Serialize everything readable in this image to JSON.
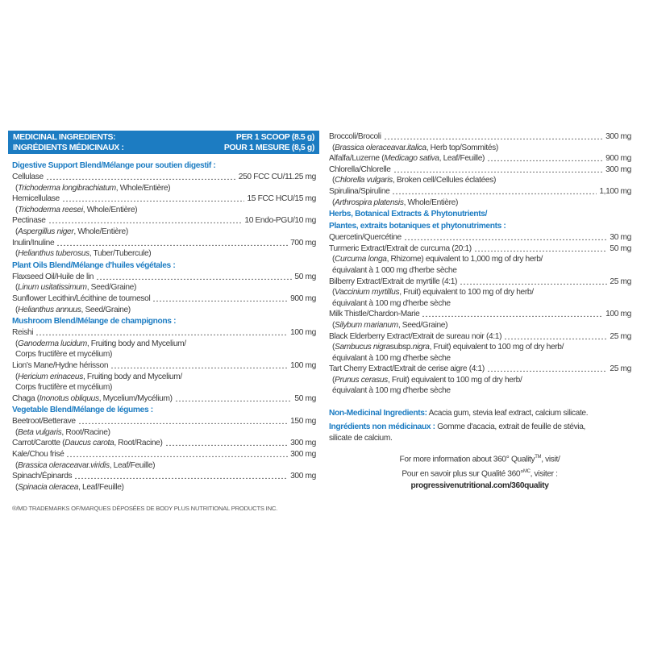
{
  "header": {
    "left1": "MEDICINAL INGREDIENTS:",
    "right1": "PER 1 SCOOP (8.5 g)",
    "left2": "INGRÉDIENTS MÉDICINAUX :",
    "right2": "POUR 1 MESURE (8,5 g)"
  },
  "colors": {
    "accent": "#1c7cc2",
    "text": "#3a3a3a"
  },
  "left": [
    {
      "section": "Digestive Support Blend/Mélange pour soutien digestif :"
    },
    {
      "name": [
        {
          "t": "Cellulase"
        }
      ],
      "amount": "250 FCC CU/11.25 mg",
      "sub": [
        [
          {
            "t": "(",
            "i": false
          },
          {
            "t": "Trichoderma longibrachiatum",
            "i": true
          },
          {
            "t": ", Whole/Entière)"
          }
        ]
      ]
    },
    {
      "name": [
        {
          "t": "Hemicellulase"
        }
      ],
      "amount": "15 FCC HCU/15 mg",
      "sub": [
        [
          {
            "t": "("
          },
          {
            "t": "Trichoderma reesei",
            "i": true
          },
          {
            "t": ", Whole/Entière)"
          }
        ]
      ]
    },
    {
      "name": [
        {
          "t": "Pectinase"
        }
      ],
      "amount": "10 Endo-PGU/10 mg",
      "sub": [
        [
          {
            "t": "("
          },
          {
            "t": "Aspergillus niger",
            "i": true
          },
          {
            "t": ", Whole/Entière)"
          }
        ]
      ]
    },
    {
      "name": [
        {
          "t": "Inulin/Inuline"
        }
      ],
      "amount": "700 mg",
      "sub": [
        [
          {
            "t": "("
          },
          {
            "t": "Helianthus tuberosus",
            "i": true
          },
          {
            "t": ", Tuber/Tubercule)"
          }
        ]
      ]
    },
    {
      "section": "Plant Oils Blend/Mélange d'huiles végétales :"
    },
    {
      "name": [
        {
          "t": "Flaxseed Oil/Huile de lin"
        }
      ],
      "amount": "50 mg",
      "sub": [
        [
          {
            "t": "("
          },
          {
            "t": "Linum usitatissimum",
            "i": true
          },
          {
            "t": ", Seed/Graine)"
          }
        ]
      ]
    },
    {
      "name": [
        {
          "t": "Sunflower Lecithin/Lécithine de tournesol"
        }
      ],
      "amount": "900 mg",
      "sub": [
        [
          {
            "t": "("
          },
          {
            "t": "Helianthus annuus",
            "i": true
          },
          {
            "t": ", Seed/Graine)"
          }
        ]
      ]
    },
    {
      "section": "Mushroom Blend/Mélange de champignons :"
    },
    {
      "name": [
        {
          "t": "Reishi"
        }
      ],
      "amount": "100 mg",
      "sub": [
        [
          {
            "t": "("
          },
          {
            "t": "Ganoderma lucidum",
            "i": true
          },
          {
            "t": ", Fruiting body and Mycelium/"
          }
        ],
        [
          {
            "t": "Corps fructifère et mycélium)"
          }
        ]
      ]
    },
    {
      "name": [
        {
          "t": "Lion's Mane/Hydne hérisson"
        }
      ],
      "amount": "100 mg",
      "sub": [
        [
          {
            "t": "("
          },
          {
            "t": "Hericium erinaceus",
            "i": true
          },
          {
            "t": ", Fruiting body and Mycelium/"
          }
        ],
        [
          {
            "t": "Corps fructifère et mycélium)"
          }
        ]
      ]
    },
    {
      "name": [
        {
          "t": "Chaga ("
        },
        {
          "t": "Inonotus obliquus",
          "i": true
        },
        {
          "t": ", Mycelium/Mycélium)"
        }
      ],
      "amount": "50 mg",
      "sub": []
    },
    {
      "section": "Vegetable Blend/Mélange de légumes :"
    },
    {
      "name": [
        {
          "t": "Beetroot/Betterave"
        }
      ],
      "amount": "150 mg",
      "sub": [
        [
          {
            "t": "("
          },
          {
            "t": "Beta vulgaris",
            "i": true
          },
          {
            "t": ", Root/Racine)"
          }
        ]
      ]
    },
    {
      "name": [
        {
          "t": "Carrot/Carotte ("
        },
        {
          "t": "Daucus carota",
          "i": true
        },
        {
          "t": ", Root/Racine)"
        }
      ],
      "amount": "300 mg",
      "sub": []
    },
    {
      "name": [
        {
          "t": "Kale/Chou frisé"
        }
      ],
      "amount": "300 mg",
      "sub": [
        [
          {
            "t": "("
          },
          {
            "t": "Brassica oleracea",
            "i": true
          },
          {
            "t": " var. "
          },
          {
            "t": "viridis",
            "i": true
          },
          {
            "t": ", Leaf/Feuille)"
          }
        ]
      ]
    },
    {
      "name": [
        {
          "t": "Spinach/Épinards"
        }
      ],
      "amount": "300 mg",
      "sub": [
        [
          {
            "t": "("
          },
          {
            "t": "Spinacia oleracea",
            "i": true
          },
          {
            "t": ", Leaf/Feuille)"
          }
        ]
      ]
    }
  ],
  "right": [
    {
      "name": [
        {
          "t": "Broccoli/Brocoli"
        }
      ],
      "amount": "300 mg",
      "sub": [
        [
          {
            "t": "("
          },
          {
            "t": "Brassica oleracea",
            "i": true
          },
          {
            "t": " var. "
          },
          {
            "t": "italica",
            "i": true
          },
          {
            "t": ", Herb top/Sommités)"
          }
        ]
      ]
    },
    {
      "name": [
        {
          "t": "Alfalfa/Luzerne ("
        },
        {
          "t": "Medicago sativa",
          "i": true
        },
        {
          "t": ", Leaf/Feuille)"
        }
      ],
      "amount": "900 mg",
      "sub": []
    },
    {
      "name": [
        {
          "t": "Chlorella/Chlorelle"
        }
      ],
      "amount": "300 mg",
      "sub": [
        [
          {
            "t": "("
          },
          {
            "t": "Chlorella vulgaris",
            "i": true
          },
          {
            "t": ", Broken cell/Cellules éclatées)"
          }
        ]
      ]
    },
    {
      "name": [
        {
          "t": "Spirulina/Spiruline"
        }
      ],
      "amount": "1,100 mg",
      "sub": [
        [
          {
            "t": "("
          },
          {
            "t": "Arthrospira platensis",
            "i": true
          },
          {
            "t": ", Whole/Entière)"
          }
        ]
      ]
    },
    {
      "section": "Herbs, Botanical Extracts & Phytonutrients/"
    },
    {
      "section": "Plantes, extraits botaniques et phytonutriments :"
    },
    {
      "name": [
        {
          "t": "Quercetin/Quercétine"
        }
      ],
      "amount": "30 mg",
      "sub": []
    },
    {
      "name": [
        {
          "t": "Turmeric Extract/Extrait de curcuma (20:1)"
        }
      ],
      "amount": "50 mg",
      "sub": [
        [
          {
            "t": "("
          },
          {
            "t": "Curcuma longa",
            "i": true
          },
          {
            "t": ", Rhizome) equivalent to 1,000 mg of dry herb/"
          }
        ],
        [
          {
            "t": "équivalant à 1 000 mg d'herbe sèche"
          }
        ]
      ]
    },
    {
      "name": [
        {
          "t": "Bilberry Extract/Extrait de myrtille (4:1)"
        }
      ],
      "amount": "25 mg",
      "sub": [
        [
          {
            "t": "("
          },
          {
            "t": "Vaccinium myrtillus",
            "i": true
          },
          {
            "t": ", Fruit) equivalent to 100 mg of dry herb/"
          }
        ],
        [
          {
            "t": "équivalant à 100 mg d'herbe sèche"
          }
        ]
      ]
    },
    {
      "name": [
        {
          "t": "Milk Thistle/Chardon-Marie"
        }
      ],
      "amount": "100 mg",
      "sub": [
        [
          {
            "t": "("
          },
          {
            "t": "Silybum marianum",
            "i": true
          },
          {
            "t": ", Seed/Graine)"
          }
        ]
      ]
    },
    {
      "name": [
        {
          "t": "Black Elderberry Extract/Extrait de sureau noir (4:1)"
        }
      ],
      "amount": "25 mg",
      "sub": [
        [
          {
            "t": "("
          },
          {
            "t": "Sambucus nigra",
            "i": true
          },
          {
            "t": " subsp. "
          },
          {
            "t": "nigra",
            "i": true
          },
          {
            "t": ", Fruit) equivalent to 100 mg of dry herb/"
          }
        ],
        [
          {
            "t": "équivalant à 100 mg d'herbe sèche"
          }
        ]
      ]
    },
    {
      "name": [
        {
          "t": "Tart Cherry Extract/Extrait de cerise aigre (4:1)"
        }
      ],
      "amount": "25 mg",
      "sub": [
        [
          {
            "t": "("
          },
          {
            "t": "Prunus cerasus",
            "i": true
          },
          {
            "t": ", Fruit) equivalent to 100 mg of dry herb/"
          }
        ],
        [
          {
            "t": "équivalant à 100 mg d'herbe sèche"
          }
        ]
      ]
    }
  ],
  "non_medicinal": {
    "en_label": "Non-Medicinal Ingredients:",
    "en_text": " Acacia gum, stevia leaf extract, calcium silicate.",
    "fr_label": "Ingrédients non médicinaux :",
    "fr_text": " Gomme d'acacia, extrait de feuille de stévia, silicate de calcium."
  },
  "info": {
    "line1": "For more information about 360° Quality",
    "line1_sup": "TM",
    "line1_end": ", visit/",
    "line2": "Pour en savoir plus sur Qualité 360°",
    "line2_sup": "MC",
    "line2_end": ", visiter :",
    "url": "progressivenutritional.com/360quality"
  },
  "trademark": "®/MD TRADEMARKS OF/MARQUES DÉPOSÉES DE BODY PLUS NUTRITIONAL PRODUCTS INC."
}
